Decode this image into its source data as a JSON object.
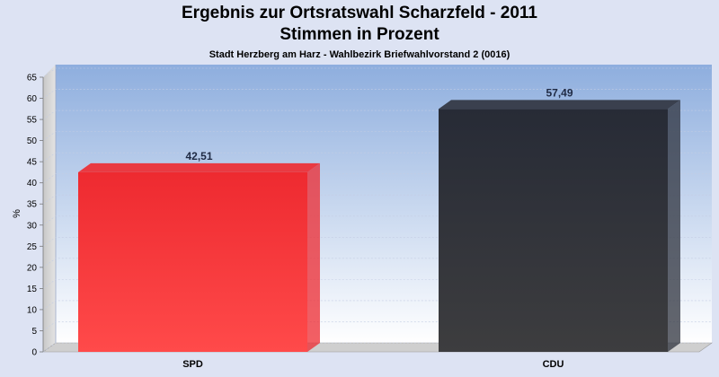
{
  "chart_data": {
    "type": "bar",
    "title": "Ergebnis zur Ortsratswahl Scharzfeld - 2011",
    "subtitle": "Stimmen in Prozent",
    "caption": "Stadt Herzberg am Harz - Wahlbezirk Briefwahlvorstand 2 (0016)",
    "ylabel": "%",
    "ylim": [
      0,
      65
    ],
    "yticks": [
      0,
      5,
      10,
      15,
      20,
      25,
      30,
      35,
      40,
      45,
      50,
      55,
      60,
      65
    ],
    "categories": [
      "SPD",
      "CDU"
    ],
    "values": [
      42.51,
      57.49
    ],
    "value_labels": [
      "42,51",
      "57,49"
    ],
    "colors": [
      "#ee2a30",
      "#2f333d"
    ],
    "grid": true
  }
}
